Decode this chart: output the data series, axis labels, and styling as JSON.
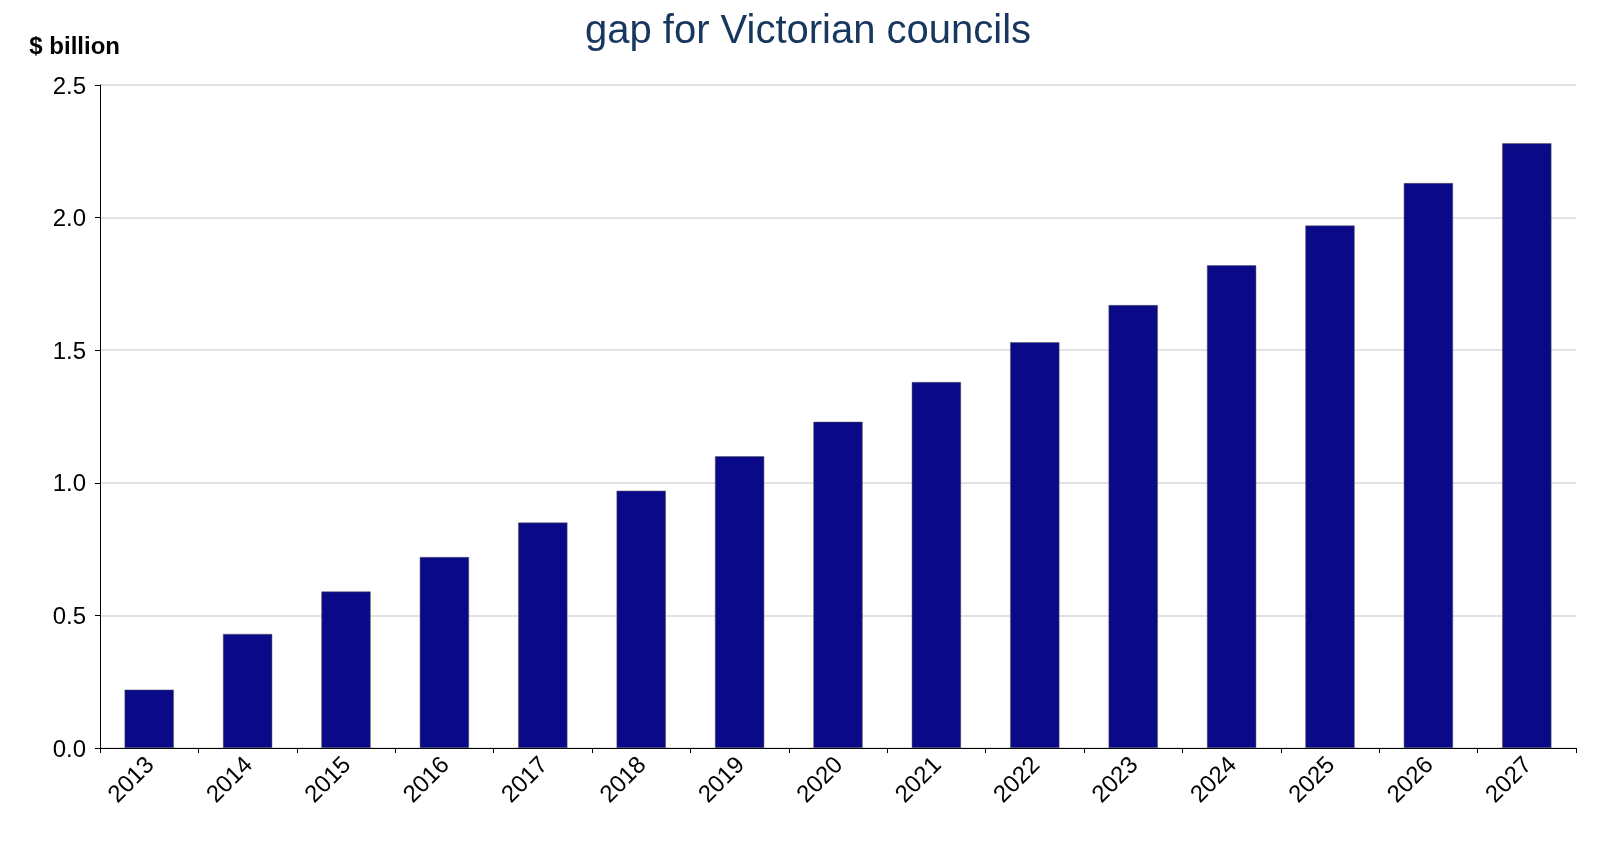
{
  "chart_data": {
    "type": "bar",
    "title": "gap for Victorian councils",
    "ylabel": "$ billion",
    "categories": [
      "2013",
      "2014",
      "2015",
      "2016",
      "2017",
      "2018",
      "2019",
      "2020",
      "2021",
      "2022",
      "2023",
      "2024",
      "2025",
      "2026",
      "2027"
    ],
    "values": [
      0.22,
      0.43,
      0.59,
      0.72,
      0.85,
      0.97,
      1.1,
      1.23,
      1.38,
      1.53,
      1.67,
      1.82,
      1.97,
      2.13,
      2.28
    ],
    "color": "#0a0a88",
    "ylim": [
      0,
      2.5
    ],
    "yticks": [
      {
        "value": 0,
        "label": "0.0"
      },
      {
        "value": 0.5,
        "label": "0.5"
      },
      {
        "value": 1,
        "label": "1.0"
      },
      {
        "value": 1.5,
        "label": "1.5"
      },
      {
        "value": 2,
        "label": "2.0"
      },
      {
        "value": 2.5,
        "label": "2.5"
      }
    ],
    "grid": "y"
  }
}
